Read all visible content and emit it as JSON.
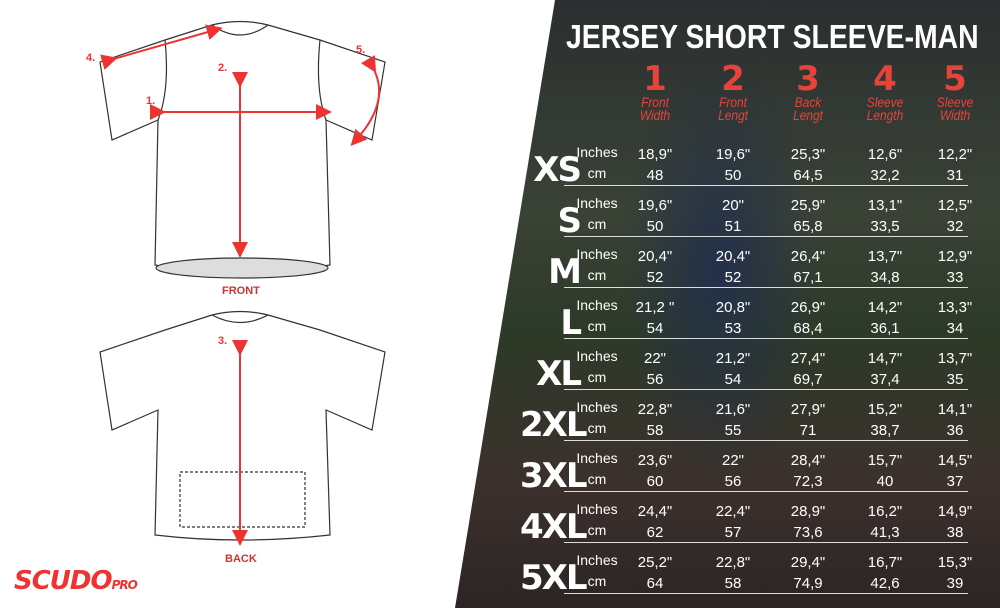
{
  "title": "JERSEY SHORT SLEEVE-MAN",
  "columns": [
    {
      "num": "1",
      "label": "Front Width"
    },
    {
      "num": "2",
      "label": "Front Lengt"
    },
    {
      "num": "3",
      "label": "Back Lengt"
    },
    {
      "num": "4",
      "label": "Sleeve Length"
    },
    {
      "num": "5",
      "label": "Sleeve Width"
    }
  ],
  "unit_labels": {
    "inches": "Inches",
    "cm": "cm"
  },
  "rows": [
    {
      "size": "XS",
      "inches": [
        "18,9\"",
        "19,6\"",
        "25,3\"",
        "12,6\"",
        "12,2\""
      ],
      "cm": [
        "48",
        "50",
        "64,5",
        "32,2",
        "31"
      ]
    },
    {
      "size": "S",
      "inches": [
        "19,6\"",
        "20\"",
        "25,9\"",
        "13,1\"",
        "12,5\""
      ],
      "cm": [
        "50",
        "51",
        "65,8",
        "33,5",
        "32"
      ]
    },
    {
      "size": "M",
      "inches": [
        "20,4\"",
        "20,4\"",
        "26,4\"",
        "13,7\"",
        "12,9\""
      ],
      "cm": [
        "52",
        "52",
        "67,1",
        "34,8",
        "33"
      ]
    },
    {
      "size": "L",
      "inches": [
        "21,2 \"",
        "20,8\"",
        "26,9\"",
        "14,2\"",
        "13,3\""
      ],
      "cm": [
        "54",
        "53",
        "68,4",
        "36,1",
        "34"
      ]
    },
    {
      "size": "XL",
      "inches": [
        "22\"",
        "21,2\"",
        "27,4\"",
        "14,7\"",
        "13,7\""
      ],
      "cm": [
        "56",
        "54",
        "69,7",
        "37,4",
        "35"
      ]
    },
    {
      "size": "2XL",
      "inches": [
        "22,8\"",
        "21,6\"",
        "27,9\"",
        "15,2\"",
        "14,1\""
      ],
      "cm": [
        "58",
        "55",
        "71",
        "38,7",
        "36"
      ]
    },
    {
      "size": "3XL",
      "inches": [
        "23,6\"",
        "22\"",
        "28,4\"",
        "15,7\"",
        "14,5\""
      ],
      "cm": [
        "60",
        "56",
        "72,3",
        "40",
        "37"
      ]
    },
    {
      "size": "4XL",
      "inches": [
        "24,4\"",
        "22,4\"",
        "28,9\"",
        "16,2\"",
        "14,9\""
      ],
      "cm": [
        "62",
        "57",
        "73,6",
        "41,3",
        "38"
      ]
    },
    {
      "size": "5XL",
      "inches": [
        "25,2\"",
        "22,8\"",
        "29,4\"",
        "16,7\"",
        "15,3\""
      ],
      "cm": [
        "64",
        "58",
        "74,9",
        "42,6",
        "39"
      ]
    }
  ],
  "diagram": {
    "front_caption": "FRONT",
    "back_caption": "BACK",
    "markers": [
      "1.",
      "2.",
      "3.",
      "4.",
      "5."
    ]
  },
  "logo": {
    "brand": "SCUDO",
    "suffix": "PRO"
  },
  "colors": {
    "accent": "#e8433a",
    "text": "#ffffff"
  }
}
